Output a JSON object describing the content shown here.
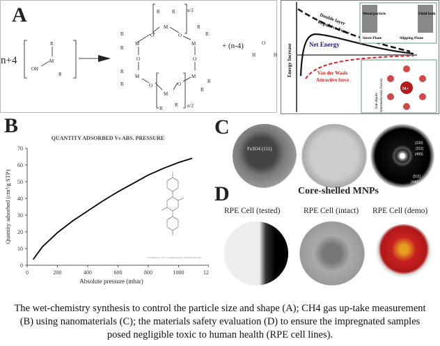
{
  "panel_a": {
    "label": "A",
    "reactant_coeff": "n+4",
    "reactant_groups": [
      "R",
      "OH",
      "M",
      "R"
    ],
    "ring_atoms": {
      "metal": "M",
      "oxygen": "O",
      "substituent": "R"
    },
    "repeat_label": "n/2",
    "byproduct_coeff": "+ (n-4)",
    "water": {
      "O": "O",
      "H": "H"
    }
  },
  "energy_diagram": {
    "y_label": "Energy Increase",
    "repulsive_label": "Double layer Repulsive Force",
    "net_label": "Net Energy",
    "attractive_label": "Van der Waals Attractive force",
    "inset_top": {
      "left": "Metal particle",
      "right": "Fluid bulk",
      "stern": "Stern Plane",
      "slipping": "Slipping Plane"
    },
    "inset_bottom": {
      "label": "Ion-dipole Intermolecular Forces",
      "center": "M+"
    },
    "colors": {
      "net": "#1a1a8c",
      "attractive": "#e02020",
      "repulsive": "#000000",
      "inset_border": "#5a9a7a"
    }
  },
  "panel_b": {
    "label": "B",
    "molecule_caption": "2,5-diethyl-[1,1':4',1''-terphenyl]-4,4''-dicarboxylic acid"
  },
  "chart_data": {
    "type": "line",
    "title": "QUANTITY ADSORBED Vs ABS. PRESSURE",
    "xlabel": "Absolute pressure (mbar)",
    "ylabel": "Quantity adsorbed (cm³/g STP)",
    "xlim": [
      0,
      1200
    ],
    "ylim": [
      0,
      70
    ],
    "xticks": [
      "0",
      "200",
      "400",
      "600",
      "800",
      "1000",
      "1200"
    ],
    "yticks": [
      "0",
      "10",
      "20",
      "30",
      "40",
      "50",
      "60",
      "70"
    ],
    "grid": false,
    "series": [
      {
        "x": [
          40,
          100,
          200,
          300,
          400,
          500,
          600,
          700,
          800,
          900,
          1000,
          1090
        ],
        "y": [
          3.5,
          11,
          19.5,
          26.5,
          32.5,
          38.5,
          44,
          49,
          54,
          58,
          61.5,
          64
        ]
      }
    ]
  },
  "panel_c": {
    "label": "C",
    "lattice_label": "Fe3O4 (111)",
    "caption": "Core-shelled MNPs",
    "diffraction_rings": [
      "(220)",
      "(311)",
      "(400)",
      "(511)",
      "(440)"
    ]
  },
  "panel_d": {
    "label": "D",
    "images": [
      "RPE Cell (tested)",
      "RPE Cell (intact)",
      "RPE Cell (demo)"
    ]
  },
  "caption": "The wet-chemistry synthesis to control the particle size and shape (A); CH4 gas up-take measurement (B) using nanomaterials (C); the materials safety evaluation (D) to ensure the impregnated samples posed negligible toxic to human health (RPE cell lines)."
}
